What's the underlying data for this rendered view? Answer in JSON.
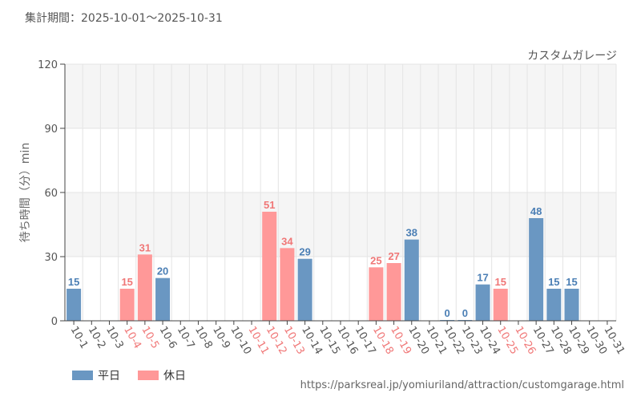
{
  "header": {
    "period_label": "集計期間：",
    "period_range": "2025-10-01～2025-10-31"
  },
  "colors": {
    "weekday": "#6a97c2",
    "holiday": "#ff9898",
    "weekday_text": "#4b7fb5",
    "holiday_text": "#f07777",
    "band": "#f5f5f5",
    "grid": "#e4e4e4"
  },
  "footer": {
    "source": "https://parksreal.jp/yomiuriland/attraction/customgarage.html"
  },
  "chart_data": {
    "type": "bar",
    "attraction": "カスタムガレージ",
    "ylabel": "待ち時間（分）min",
    "xlabel": "",
    "ylim": [
      0,
      120
    ],
    "yticks": [
      0,
      30,
      60,
      90,
      120
    ],
    "legend": [
      {
        "name": "平日",
        "key": "weekday"
      },
      {
        "name": "休日",
        "key": "holiday"
      }
    ],
    "categories": [
      "10-1",
      "10-2",
      "10-3",
      "10-4",
      "10-5",
      "10-6",
      "10-7",
      "10-8",
      "10-9",
      "10-10",
      "10-11",
      "10-12",
      "10-13",
      "10-14",
      "10-15",
      "10-16",
      "10-17",
      "10-18",
      "10-19",
      "10-20",
      "10-21",
      "10-22",
      "10-23",
      "10-24",
      "10-25",
      "10-26",
      "10-27",
      "10-28",
      "10-29",
      "10-30",
      "10-31"
    ],
    "day_type": [
      "weekday",
      "weekday",
      "weekday",
      "holiday",
      "holiday",
      "weekday",
      "weekday",
      "weekday",
      "weekday",
      "weekday",
      "holiday",
      "holiday",
      "holiday",
      "weekday",
      "weekday",
      "weekday",
      "weekday",
      "holiday",
      "holiday",
      "weekday",
      "weekday",
      "weekday",
      "weekday",
      "weekday",
      "holiday",
      "holiday",
      "weekday",
      "weekday",
      "weekday",
      "weekday",
      "weekday"
    ],
    "values": [
      15,
      null,
      null,
      15,
      31,
      20,
      null,
      null,
      null,
      null,
      null,
      51,
      34,
      29,
      null,
      null,
      null,
      25,
      27,
      38,
      null,
      0,
      0,
      17,
      15,
      null,
      48,
      15,
      15,
      null,
      null
    ]
  }
}
